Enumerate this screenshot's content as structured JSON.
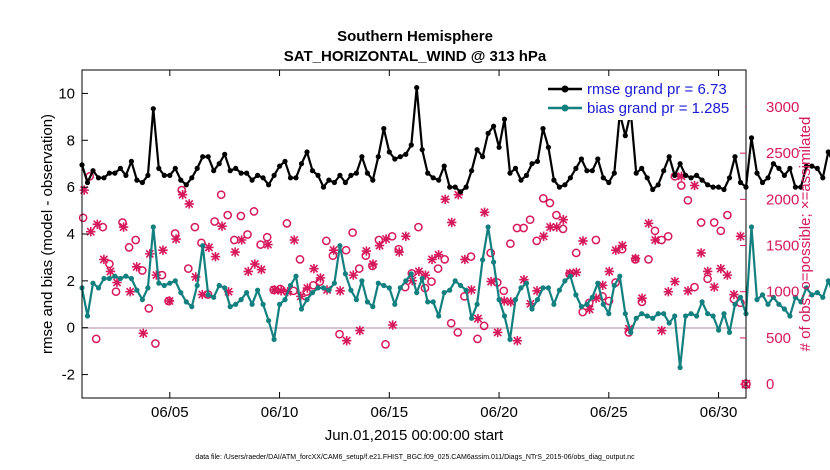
{
  "chart_data": {
    "type": "line",
    "title": "Southern Hemisphere",
    "subtitle": "SAT_HORIZONTAL_WIND @ 313 hPa",
    "xlabel": "Jun.01,2015 00:00:00 start",
    "ylabel": "rmse and bias (model - observation)",
    "y2label": "# of obs: o=possible; ×=assimilated",
    "xlim": [
      1,
      31.25
    ],
    "ylim": [
      -3,
      11
    ],
    "y2lim": [
      -150,
      3400
    ],
    "xticks": [
      5,
      10,
      15,
      20,
      25,
      30
    ],
    "xtick_labels": [
      "06/05",
      "06/10",
      "06/15",
      "06/20",
      "06/25",
      "06/30"
    ],
    "yticks": [
      -2,
      0,
      2,
      4,
      6,
      8,
      10
    ],
    "ytick_labels": [
      "-2",
      "0",
      "2",
      "4",
      "6",
      "8",
      "10"
    ],
    "y2ticks": [
      0,
      500,
      1000,
      1500,
      2000,
      2500,
      3000
    ],
    "y2tick_labels": [
      "0",
      "500",
      "1000",
      "1500",
      "2000",
      "2500",
      "3000"
    ],
    "x_start": 1.0,
    "x_step": 0.25,
    "series": [
      {
        "name": "rmse grand pr = 6.73",
        "color": "#000000",
        "values": [
          6.95,
          6.2,
          6.7,
          6.4,
          6.4,
          6.6,
          6.6,
          6.8,
          6.5,
          7.1,
          6.3,
          6.2,
          6.5,
          9.35,
          6.8,
          6.5,
          6.5,
          6.8,
          6.3,
          6.1,
          6.4,
          6.8,
          7.3,
          7.3,
          6.7,
          7.0,
          7.4,
          6.7,
          6.8,
          6.6,
          6.6,
          6.3,
          6.5,
          6.4,
          6.1,
          6.5,
          6.9,
          7.1,
          6.4,
          6.4,
          7.0,
          7.5,
          6.7,
          6.5,
          6.0,
          6.3,
          6.2,
          6.5,
          6.2,
          6.5,
          6.6,
          7.3,
          6.6,
          6.3,
          7.3,
          8.5,
          7.5,
          7.2,
          7.3,
          7.4,
          7.8,
          10.25,
          7.6,
          6.6,
          6.4,
          6.3,
          6.9,
          6.0,
          6.0,
          5.8,
          6.0,
          6.7,
          7.6,
          7.3,
          8.3,
          8.6,
          7.7,
          8.9,
          6.6,
          6.8,
          6.3,
          6.5,
          7.0,
          7.1,
          8.5,
          7.7,
          6.3,
          6.0,
          6.1,
          6.4,
          6.8,
          7.2,
          6.7,
          6.7,
          7.2,
          6.4,
          6.2,
          6.6,
          9.15,
          8.2,
          9.2,
          6.6,
          6.8,
          6.4,
          5.9,
          6.1,
          6.7,
          7.3,
          6.5,
          7.0,
          6.5,
          6.4,
          6.5,
          6.3,
          6.1,
          6.0,
          6.0,
          5.9,
          6.4,
          7.3,
          6.2,
          6.0,
          8.1,
          6.6,
          6.2,
          6.4,
          7.0,
          6.8,
          6.5,
          6.8,
          6.0,
          6.0,
          6.9,
          6.9,
          6.8,
          6.4,
          7.5,
          7.0,
          6.2,
          5.9,
          5.7
        ]
      },
      {
        "name": "bias grand pr = 1.285",
        "color": "#138080",
        "values": [
          1.7,
          0.5,
          1.9,
          1.7,
          2.1,
          2.1,
          2.2,
          2.1,
          2.2,
          2.1,
          1.6,
          1.2,
          1.7,
          4.3,
          1.9,
          1.8,
          1.9,
          2.0,
          1.5,
          1.1,
          0.9,
          1.8,
          3.5,
          1.4,
          1.3,
          1.8,
          1.7,
          0.9,
          1.0,
          1.2,
          1.5,
          1.0,
          1.6,
          1.0,
          0.3,
          -0.5,
          1.0,
          1.2,
          1.8,
          2.2,
          0.8,
          1.2,
          1.5,
          1.7,
          1.7,
          1.6,
          1.9,
          3.5,
          2.3,
          1.6,
          1.2,
          2.0,
          1.1,
          0.9,
          1.9,
          1.8,
          1.7,
          1.0,
          1.7,
          2.0,
          2.3,
          1.5,
          2.1,
          1.1,
          1.1,
          0.5,
          1.5,
          1.6,
          2.0,
          1.8,
          1.6,
          0.4,
          1.0,
          2.9,
          4.3,
          2.8,
          1.2,
          0.5,
          -0.5,
          1.2,
          1.7,
          1.9,
          0.8,
          1.2,
          1.7,
          1.7,
          1.0,
          1.6,
          2.0,
          2.2,
          1.4,
          0.9,
          1.0,
          1.3,
          1.9,
          1.0,
          0.6,
          1.8,
          2.2,
          0.6,
          -0.2,
          0.4,
          0.6,
          0.5,
          0.4,
          0.6,
          0.6,
          0.2,
          0.5,
          -1.7,
          0.5,
          0.6,
          0.5,
          1.1,
          0.6,
          0.5,
          -0.1,
          0.6,
          -0.2,
          1.0,
          1.3,
          0.6,
          4.3,
          1.2,
          1.4,
          1.0,
          1.3,
          1.0,
          0.8,
          0.5,
          1.3,
          1.1,
          1.7,
          1.4,
          1.5,
          1.3,
          2.0,
          1.4,
          0.3,
          1.8,
          1.3
        ]
      }
    ],
    "obs_possible": [
      1800,
      2250,
      490,
      1700,
      1300,
      1000,
      1750,
      1480,
      1560,
      1230,
      820,
      440,
      1180,
      900,
      1630,
      2100,
      1250,
      1700,
      1530,
      970,
      1760,
      2050,
      1830,
      1560,
      1820,
      1620,
      1870,
      1510,
      1590,
      1020,
      1030,
      1740,
      1010,
      1350,
      1000,
      1070,
      1110,
      1550,
      1390,
      540,
      1450,
      1640,
      1250,
      1390,
      1280,
      1560,
      430,
      1600,
      1460,
      1050,
      1200,
      1700,
      1040,
      1110,
      1250,
      1350,
      660,
      560,
      950,
      1380,
      490,
      630,
      1420,
      1100,
      1010,
      1520,
      1690,
      1690,
      1780,
      1550,
      2010,
      1960,
      1830,
      1680,
      1190,
      1420,
      780,
      880,
      1560,
      950,
      900,
      1100,
      1460,
      560,
      1350,
      890,
      1350,
      1660,
      1560,
      1600,
      2250,
      2150,
      1990,
      1050,
      1750,
      1140,
      1750,
      1660,
      1830,
      920,
      880
    ],
    "obs_assimilated": [
      2100,
      1650,
      1730,
      1350,
      1220,
      1100,
      1700,
      1000,
      1270,
      550,
      1410,
      1180,
      1450,
      900,
      1570,
      2050,
      1950,
      1160,
      970,
      1480,
      1380,
      1710,
      1000,
      1430,
      1560,
      1220,
      1300,
      1240,
      1510,
      1020,
      1010,
      1000,
      1560,
      950,
      1040,
      1250,
      1150,
      1020,
      1450,
      1010,
      470,
      1180,
      580,
      1440,
      1300,
      1500,
      1570,
      640,
      1430,
      1600,
      1120,
      1220,
      1180,
      1350,
      1400,
      2000,
      1750,
      2050,
      1350,
      1020,
      710,
      1860,
      1110,
      560,
      900,
      890,
      470,
      1130,
      870,
      1010,
      1600,
      1700,
      1700,
      1780,
      1200,
      1210,
      1550,
      810,
      930,
      1070,
      1220,
      1450,
      1500,
      600,
      1360,
      930,
      1740,
      1560,
      580,
      1000,
      1110,
      2250,
      1010,
      2150,
      1420,
      1220,
      1050,
      1250,
      1180,
      970,
      1600
    ],
    "legend": {
      "location": "top-right"
    },
    "footnote": "data file: /Users/raeder/DAI/ATM_forcXX/CAM6_setup/f.e21.FHIST_BGC.f09_025.CAM6assim.011/Diags_NTrS_2015-06/obs_diag_output.nc",
    "colors": {
      "rmse": "#000000",
      "bias": "#138080",
      "obs": "#d6185c",
      "zero_line": "#c8b0c0"
    }
  }
}
